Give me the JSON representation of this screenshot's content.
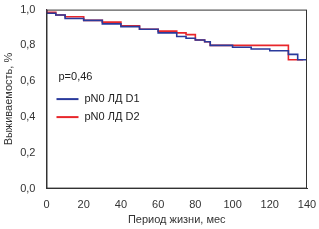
{
  "chart_data": {
    "type": "line",
    "y_label": "Выживаемость, %",
    "x_label": "Период жизни, мес",
    "annotation": "p=0,46",
    "x": [
      0,
      5,
      10,
      20,
      30,
      40,
      50,
      60,
      70,
      75,
      80,
      85,
      88,
      95,
      100,
      110,
      120,
      130,
      135,
      138,
      140
    ],
    "series": [
      {
        "name": "pN0 ЛД D1",
        "color": "#2a3a9c",
        "line_style": "stepped",
        "values": [
          1.0,
          0.98,
          0.97,
          0.95,
          0.94,
          0.92,
          0.905,
          0.89,
          0.87,
          0.85,
          0.84,
          0.83,
          0.82,
          0.8,
          0.8,
          0.79,
          0.78,
          0.77,
          0.75,
          0.72,
          0.72
        ]
      },
      {
        "name": "pN0 ЛД D2",
        "color": "#e8262b",
        "line_style": "stepped",
        "values": [
          1.0,
          0.985,
          0.97,
          0.96,
          0.94,
          0.93,
          0.91,
          0.89,
          0.88,
          0.87,
          0.86,
          0.83,
          0.82,
          0.8,
          0.8,
          0.8,
          0.8,
          0.8,
          0.72,
          0.72,
          null
        ]
      }
    ],
    "xlim": [
      0,
      140
    ],
    "xticks": [
      0,
      20,
      40,
      60,
      80,
      100,
      120,
      140
    ],
    "ylim": [
      0,
      1
    ],
    "yticks": [
      {
        "value": 0,
        "label": "0,0"
      },
      {
        "value": 0.2,
        "label": "0,2"
      },
      {
        "value": 0.4,
        "label": "0,4"
      },
      {
        "value": 0.6,
        "label": "0,6"
      },
      {
        "value": 0.8,
        "label": "0,8"
      },
      {
        "value": 1,
        "label": "1,0"
      }
    ],
    "grid": false,
    "legend": "left"
  }
}
